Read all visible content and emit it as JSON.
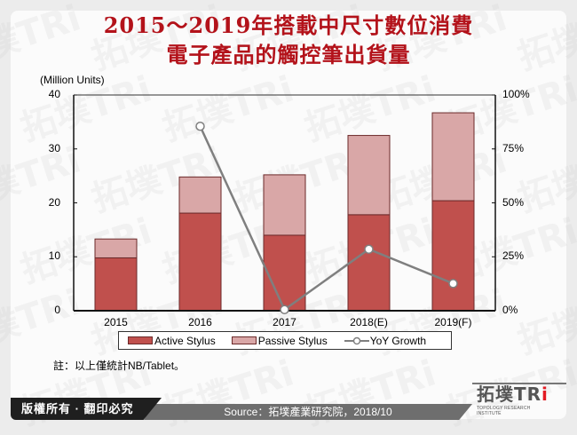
{
  "title": {
    "line1": "2015～2019年搭載中尺寸數位消費",
    "line2": "電子產品的觸控筆出貨量"
  },
  "colors": {
    "title": "#b3121a",
    "active": "#c0504d",
    "passive": "#d9a7a7",
    "yoy_line": "#7f7f7f",
    "footer_dark": "#1f1f1f",
    "footer_grey": "#6e6e6e"
  },
  "chart_data": {
    "type": "bar",
    "stacked": true,
    "title": "2015～2019年搭載中尺寸數位消費電子產品的觸控筆出貨量",
    "ylabel": "(Million Units)",
    "y2label": "",
    "xlabel": "",
    "categories": [
      "2015",
      "2016",
      "2017",
      "2018(E)",
      "2019(F)"
    ],
    "series": [
      {
        "name": "Active Stylus",
        "type": "bar",
        "axis": "left",
        "values": [
          9.8,
          18.1,
          14.0,
          17.8,
          20.4
        ]
      },
      {
        "name": "Passive Stylus",
        "type": "bar",
        "axis": "left",
        "values": [
          3.5,
          6.7,
          11.2,
          14.7,
          16.3
        ]
      },
      {
        "name": "YoY Growth",
        "type": "line",
        "axis": "right",
        "unit": "%",
        "values": [
          null,
          85.5,
          0.5,
          28.5,
          12.6
        ]
      }
    ],
    "ylim": [
      0,
      40
    ],
    "yticks": [
      "0",
      "10",
      "20",
      "30",
      "40"
    ],
    "y2lim": [
      0,
      100
    ],
    "y2ticks": [
      "0%",
      "25%",
      "50%",
      "75%",
      "100%"
    ],
    "legend_position": "bottom",
    "grid": false
  },
  "legend": {
    "items": [
      "Active Stylus",
      "Passive Stylus",
      "YoY Growth"
    ]
  },
  "note": "註：以上僅統計NB/Tablet。",
  "footer": {
    "copyright": "版權所有 · 翻印必究",
    "source": "Source：拓墣產業研究院，2018/10",
    "logo_cn": "拓墣",
    "logo_en": "TR",
    "logo_i": "i",
    "logo_sub": "TOPOLOGY RESEARCH INSTITUTE"
  },
  "watermark": {
    "cn": "拓墣TRi",
    "en": "TOPOLOGY RESEARCH INSTITUTE"
  }
}
